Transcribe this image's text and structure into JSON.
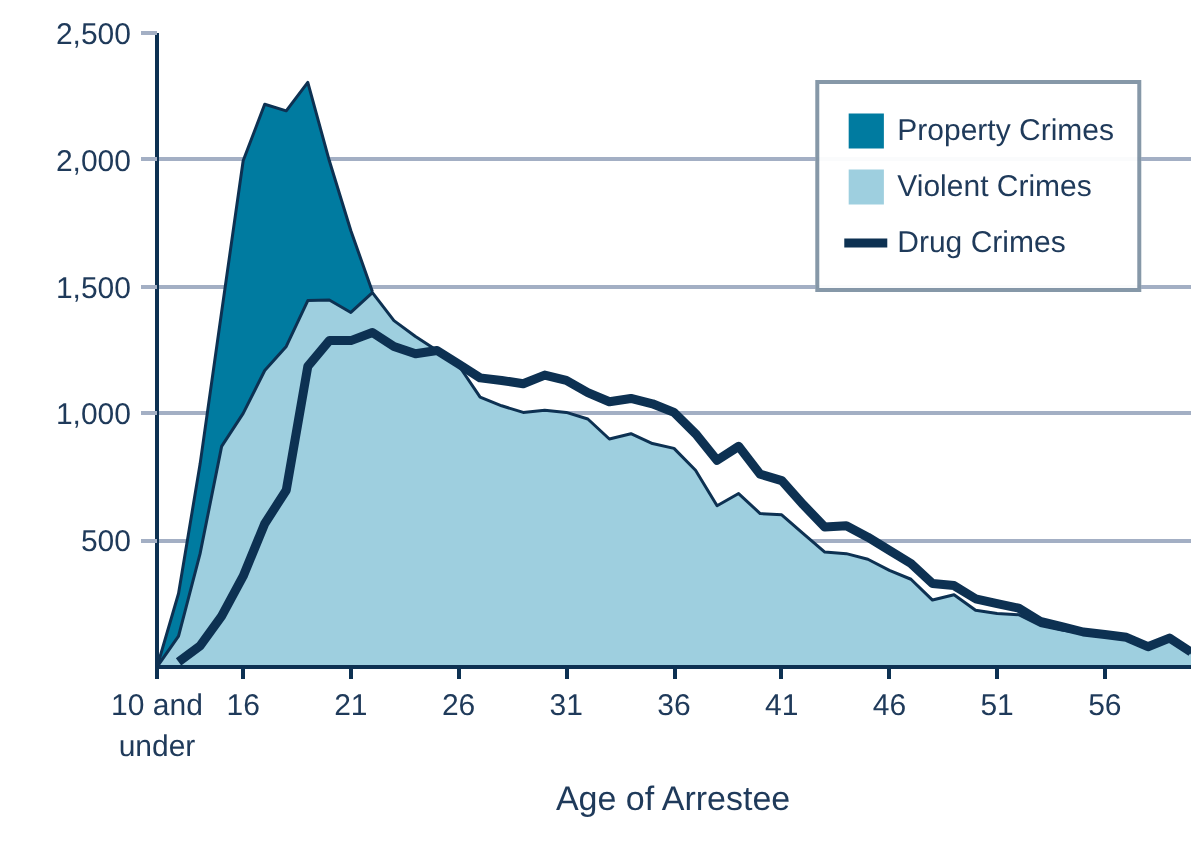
{
  "chart_data": {
    "type": "area",
    "xlabel": "Age of Arrestee",
    "categories": [
      "10 and under",
      null,
      null,
      null,
      "16",
      null,
      null,
      null,
      null,
      "21",
      null,
      null,
      null,
      null,
      "26",
      null,
      null,
      null,
      null,
      "31",
      null,
      null,
      null,
      null,
      "36",
      null,
      null,
      null,
      null,
      "41",
      null,
      null,
      null,
      null,
      "46",
      null,
      null,
      null,
      null,
      "51",
      null,
      null,
      null,
      null,
      "56",
      null,
      null,
      null,
      null
    ],
    "series": [
      {
        "name": "Property Crimes",
        "color": "#007ba0",
        "values": [
          0,
          290,
          800,
          1400,
          1996,
          2219,
          2193,
          2305,
          1996,
          1720,
          1480,
          null,
          null,
          null,
          null,
          null,
          null,
          null,
          null,
          null,
          null,
          null,
          null,
          null,
          null,
          null,
          null,
          null,
          null,
          null,
          null,
          null,
          null,
          null,
          null,
          null,
          null,
          null,
          null,
          null,
          null,
          null,
          null,
          null,
          null,
          null,
          null,
          null,
          null
        ]
      },
      {
        "name": "Violent Crimes",
        "color": "#9ecfdf",
        "values": [
          0,
          122,
          447,
          870,
          1000,
          1169,
          1264,
          1445,
          1447,
          1398,
          1476,
          1366,
          1303,
          1248,
          1190,
          1064,
          1030,
          1004,
          1012,
          1004,
          978,
          899,
          920,
          881,
          862,
          776,
          636,
          684,
          605,
          600,
          526,
          453,
          447,
          425,
          381,
          346,
          264,
          285,
          224,
          211,
          206,
          164,
          146,
          133,
          120,
          112,
          75,
          107,
          54
        ]
      },
      {
        "name": "Drug Crimes",
        "type": "line",
        "color": "#0d3152",
        "values": [
          null,
          20,
          83,
          201,
          358,
          565,
          697,
          1185,
          1287,
          1287,
          1319,
          1264,
          1235,
          1248,
          1195,
          1140,
          1130,
          1117,
          1151,
          1130,
          1082,
          1046,
          1059,
          1038,
          1004,
          920,
          815,
          870,
          760,
          735,
          640,
          552,
          557,
          512,
          460,
          408,
          329,
          321,
          269,
          250,
          232,
          180,
          159,
          138,
          128,
          117,
          80,
          114,
          59
        ]
      }
    ],
    "ylim": [
      0,
      2500
    ],
    "yticks": [
      500,
      {
        "value": 1000,
        "label": "1,000"
      },
      {
        "value": 1500,
        "label": "1,500"
      },
      {
        "value": 2000,
        "label": "2,000"
      },
      {
        "value": 2500,
        "label": "2,500"
      }
    ],
    "grid": "y",
    "legend": "top right"
  }
}
